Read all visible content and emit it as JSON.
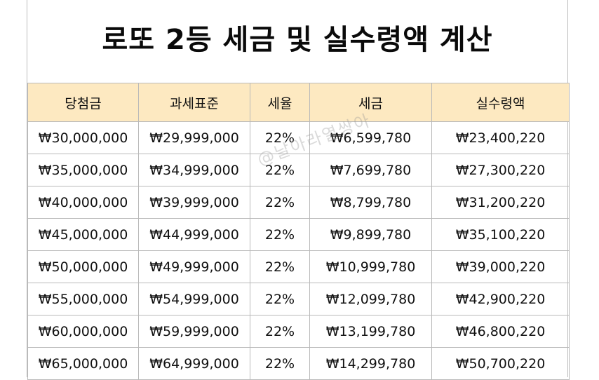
{
  "title": "로또 2등 세금 및 실수령액 계산",
  "table": {
    "headers": [
      "당첨금",
      "과세표준",
      "세율",
      "세금",
      "실수령액"
    ],
    "rows": [
      [
        "₩30,000,000",
        "₩29,999,000",
        "22%",
        "₩6,599,780",
        "₩23,400,220"
      ],
      [
        "₩35,000,000",
        "₩34,999,000",
        "22%",
        "₩7,699,780",
        "₩27,300,220"
      ],
      [
        "₩40,000,000",
        "₩39,999,000",
        "22%",
        "₩8,799,780",
        "₩31,200,220"
      ],
      [
        "₩45,000,000",
        "₩44,999,000",
        "22%",
        "₩9,899,780",
        "₩35,100,220"
      ],
      [
        "₩50,000,000",
        "₩49,999,000",
        "22%",
        "₩10,999,780",
        "₩39,000,220"
      ],
      [
        "₩55,000,000",
        "₩54,999,000",
        "22%",
        "₩12,099,780",
        "₩42,900,220"
      ],
      [
        "₩60,000,000",
        "₩59,999,000",
        "22%",
        "₩13,199,780",
        "₩46,800,220"
      ],
      [
        "₩65,000,000",
        "₩64,999,000",
        "22%",
        "₩14,299,780",
        "₩50,700,220"
      ]
    ]
  },
  "watermark": "@날아라열쌍아",
  "colors": {
    "header_bg": "#fde9c1",
    "border": "#b9b9b9"
  }
}
